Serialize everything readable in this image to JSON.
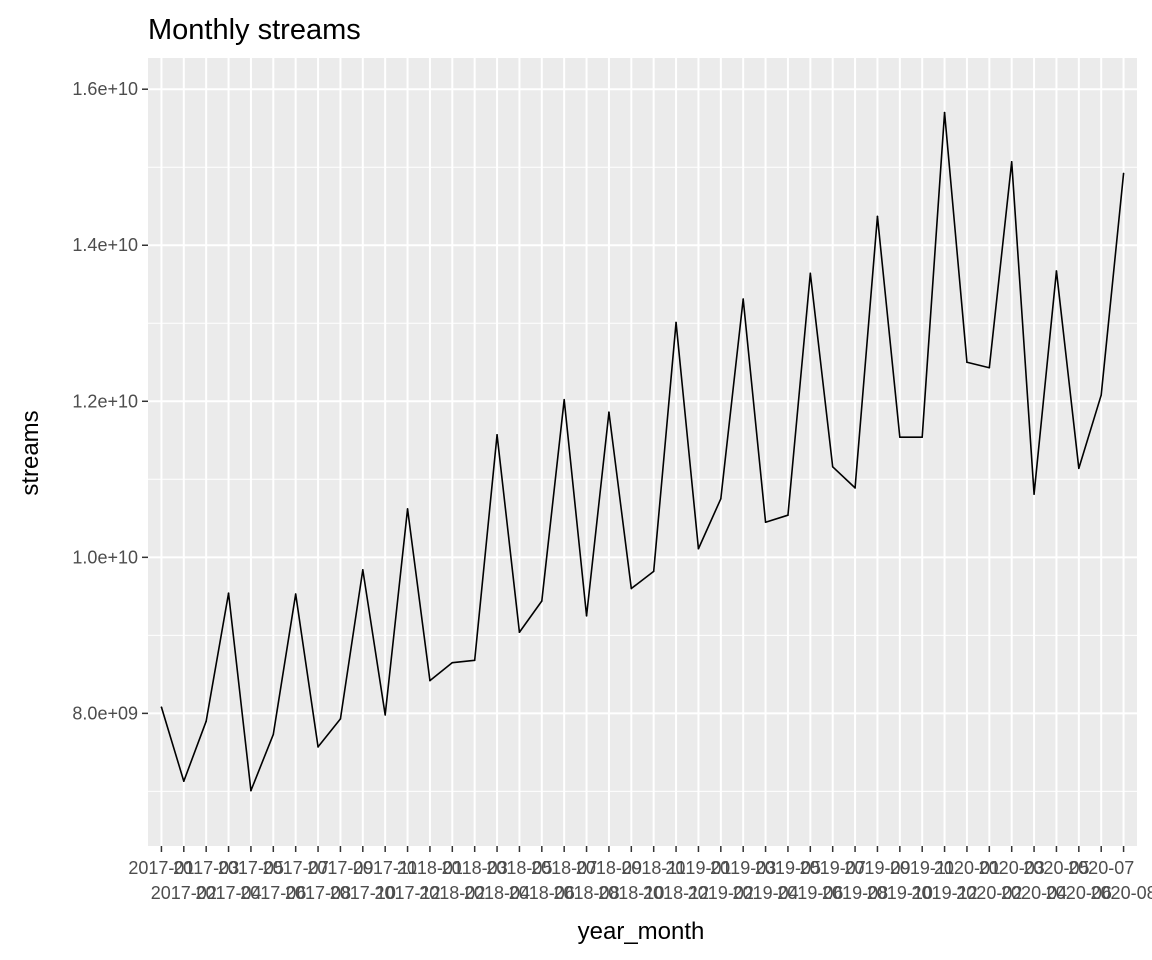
{
  "chart_data": {
    "type": "line",
    "title": "Monthly streams",
    "xlabel": "year_month",
    "ylabel": "streams",
    "ylim": [
      6300000000,
      16400000000
    ],
    "y_ticks": [
      8000000000,
      10000000000,
      12000000000,
      14000000000,
      16000000000
    ],
    "y_tick_labels": [
      "8.0e+09",
      "1.0e+10",
      "1.2e+10",
      "1.4e+10",
      "1.6e+10"
    ],
    "grid": true,
    "categories": [
      "2017-01",
      "2017-02",
      "2017-03",
      "2017-04",
      "2017-05",
      "2017-06",
      "2017-07",
      "2017-08",
      "2017-09",
      "2017-10",
      "2017-11",
      "2017-12",
      "2018-01",
      "2018-02",
      "2018-03",
      "2018-04",
      "2018-05",
      "2018-06",
      "2018-07",
      "2018-08",
      "2018-09",
      "2018-10",
      "2018-11",
      "2018-12",
      "2019-01",
      "2019-02",
      "2019-03",
      "2019-04",
      "2019-05",
      "2019-06",
      "2019-07",
      "2019-08",
      "2019-09",
      "2019-10",
      "2019-11",
      "2019-12",
      "2020-01",
      "2020-02",
      "2020-03",
      "2020-04",
      "2020-05",
      "2020-06",
      "2020-07",
      "2020-08"
    ],
    "series": [
      {
        "line_color": "#000000",
        "values": [
          8080000000,
          7130000000,
          7900000000,
          9540000000,
          7010000000,
          7730000000,
          9530000000,
          7570000000,
          7930000000,
          9840000000,
          7980000000,
          10620000000,
          8420000000,
          8650000000,
          8680000000,
          11570000000,
          9040000000,
          9440000000,
          12020000000,
          9250000000,
          11860000000,
          9600000000,
          9820000000,
          13010000000,
          10110000000,
          10750000000,
          13310000000,
          10450000000,
          10540000000,
          13640000000,
          11160000000,
          10890000000,
          14370000000,
          11540000000,
          11540000000,
          15700000000,
          12500000000,
          12430000000,
          15070000000,
          10810000000,
          13670000000,
          11140000000,
          12080000000,
          14920000000
        ]
      }
    ]
  }
}
